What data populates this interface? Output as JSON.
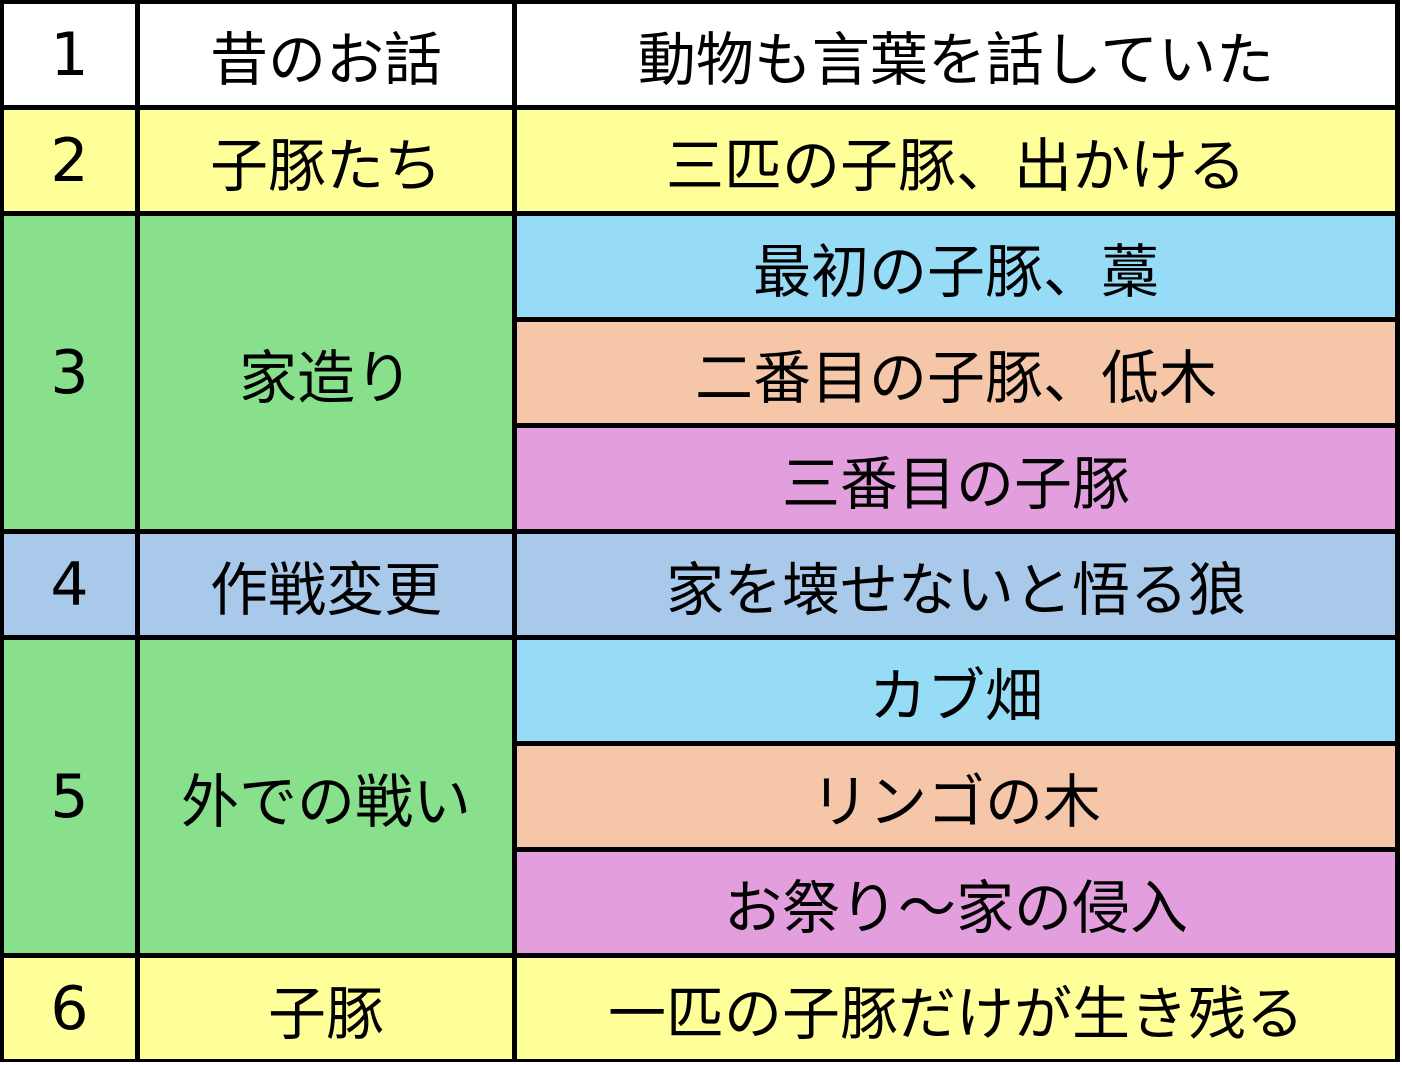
{
  "colors": {
    "white": "#FFFFFF",
    "yellow": "#FFFF99",
    "green": "#88E08C",
    "light_blue": "#97DCF7",
    "peach": "#F5C6A8",
    "pink": "#E39EDD",
    "blue": "#A9C9EB",
    "border": "#000000"
  },
  "rows": [
    {
      "num": "1",
      "title": "昔のお話",
      "color": "white",
      "details": [
        {
          "text": "動物も言葉を話していた",
          "color": "white"
        }
      ]
    },
    {
      "num": "2",
      "title": "子豚たち",
      "color": "yellow",
      "details": [
        {
          "text": "三匹の子豚、出かける",
          "color": "yellow"
        }
      ]
    },
    {
      "num": "3",
      "title": "家造り",
      "color": "green",
      "details": [
        {
          "text": "最初の子豚、藁",
          "color": "light_blue"
        },
        {
          "text": "二番目の子豚、低木",
          "color": "peach"
        },
        {
          "text": "三番目の子豚",
          "color": "pink"
        }
      ]
    },
    {
      "num": "4",
      "title": "作戦変更",
      "color": "blue",
      "details": [
        {
          "text": "家を壊せないと悟る狼",
          "color": "blue"
        }
      ]
    },
    {
      "num": "5",
      "title": "外での戦い",
      "color": "green",
      "details": [
        {
          "text": "カブ畑",
          "color": "light_blue"
        },
        {
          "text": "リンゴの木",
          "color": "peach"
        },
        {
          "text": "お祭り～家の侵入",
          "color": "pink"
        }
      ]
    },
    {
      "num": "6",
      "title": "子豚",
      "color": "yellow",
      "details": [
        {
          "text": "一匹の子豚だけが生き残る",
          "color": "yellow"
        }
      ]
    }
  ]
}
